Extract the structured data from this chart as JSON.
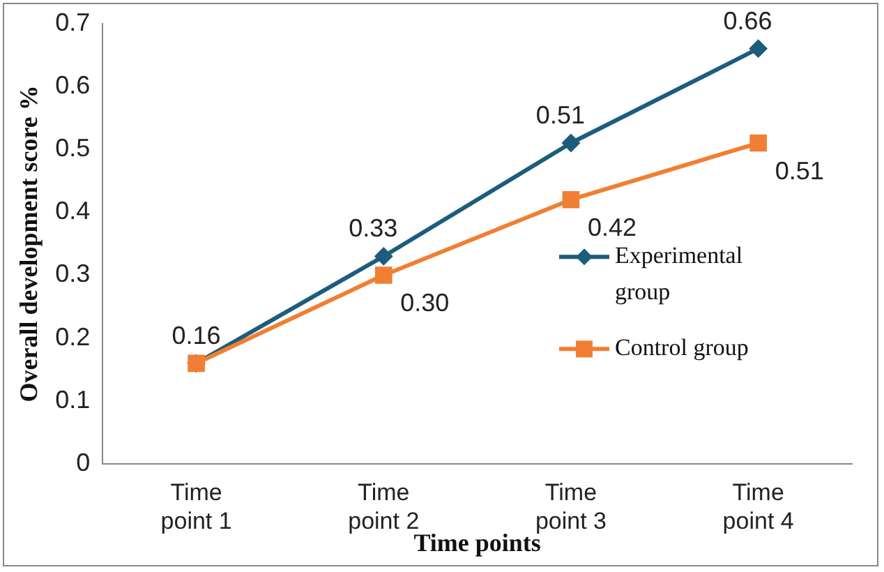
{
  "chart_data": {
    "type": "line",
    "xlabel": "Time points",
    "ylabel": "Overall development score %",
    "categories": [
      "Time point 1",
      "Time point 2",
      "Time point 3",
      "Time point 4"
    ],
    "series": [
      {
        "name": "Experimental group",
        "color": "#1d5c7c",
        "marker": "diamond",
        "values": [
          0.16,
          0.33,
          0.51,
          0.66
        ],
        "value_labels": [
          "0.16",
          "0.33",
          "0.51",
          "0.66"
        ]
      },
      {
        "name": "Control group",
        "color": "#f07f33",
        "marker": "square",
        "values": [
          0.16,
          0.3,
          0.42,
          0.51
        ],
        "value_labels": [
          null,
          "0.30",
          "0.42",
          "0.51"
        ]
      }
    ],
    "ylim": [
      0,
      0.7
    ],
    "yticks": [
      0,
      0.1,
      0.2,
      0.3,
      0.4,
      0.5,
      0.6,
      0.7
    ],
    "grid": false,
    "legend": "right",
    "line_style": "solid"
  }
}
